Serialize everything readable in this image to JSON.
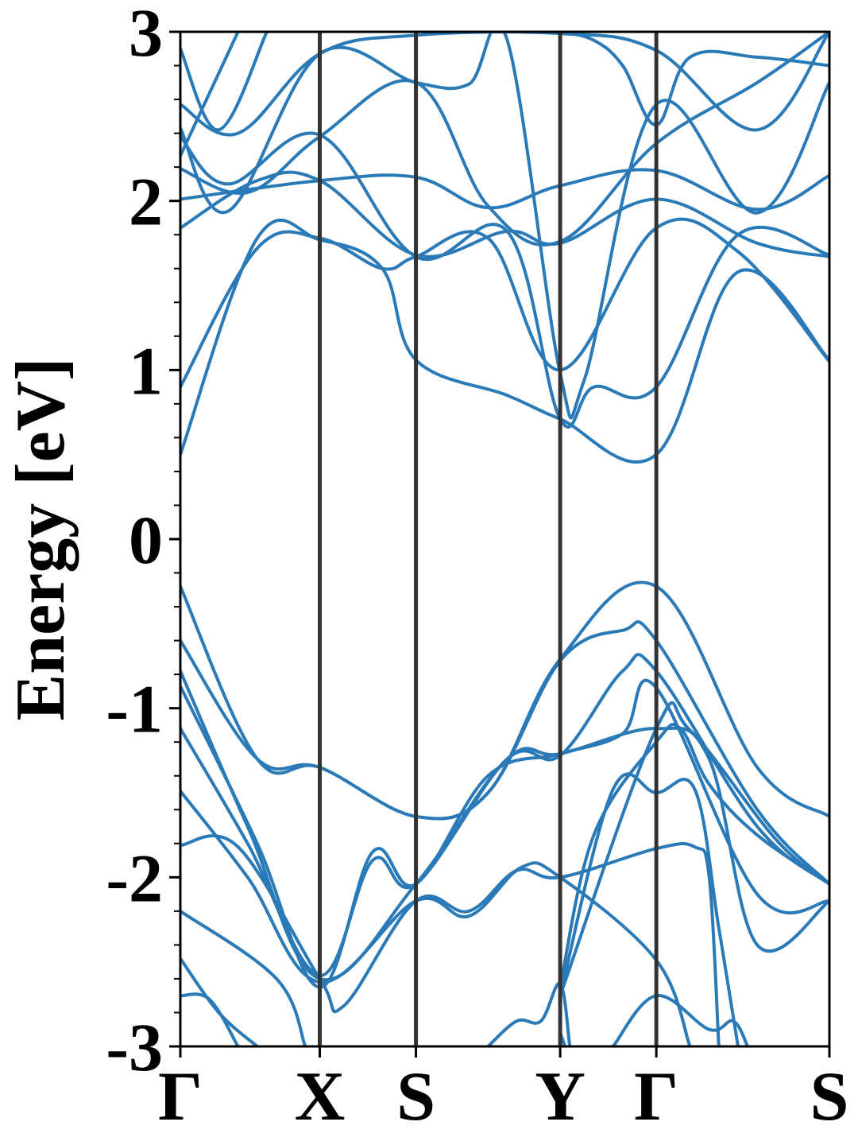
{
  "chart_data": {
    "type": "line",
    "title": "",
    "xlabel": "",
    "ylabel": "Energy [eV]",
    "ylim": [
      -3,
      3
    ],
    "xlim": [
      0,
      6.75
    ],
    "grid": false,
    "legend": "none",
    "series_color": "#2a7ab8",
    "kline_color": "#333333",
    "kpoints": [
      {
        "label": "Γ",
        "x": 0
      },
      {
        "label": "X",
        "x": 1.45
      },
      {
        "label": "S",
        "x": 2.45
      },
      {
        "label": "Y",
        "x": 3.95
      },
      {
        "label": "Γ",
        "x": 4.95
      },
      {
        "label": "S",
        "x": 6.75
      }
    ],
    "yticks": [
      {
        "value": 3,
        "label": "3"
      },
      {
        "value": 2,
        "label": "2"
      },
      {
        "value": 1,
        "label": "1"
      },
      {
        "value": 0,
        "label": "0"
      },
      {
        "value": -1,
        "label": "-1"
      },
      {
        "value": -2,
        "label": "-2"
      },
      {
        "value": -3,
        "label": "-3"
      }
    ],
    "yminor_step": 0.2,
    "series": [
      {
        "values": [
          [
            0,
            2.01
          ],
          [
            1.45,
            2.12
          ],
          [
            2.45,
            2.14
          ],
          [
            3.2,
            1.96
          ],
          [
            3.95,
            2.09
          ],
          [
            4.95,
            2.18
          ],
          [
            6.0,
            1.95
          ],
          [
            6.75,
            2.15
          ]
        ]
      },
      {
        "values": [
          [
            0,
            2.19
          ],
          [
            0.7,
            2.05
          ],
          [
            1.45,
            2.38
          ],
          [
            2.45,
            2.7
          ],
          [
            3.2,
            1.97
          ],
          [
            3.95,
            1.76
          ],
          [
            4.95,
            2.34
          ],
          [
            6.0,
            2.7
          ],
          [
            6.75,
            3.0
          ]
        ]
      },
      {
        "values": [
          [
            0,
            1.84
          ],
          [
            0.8,
            2.12
          ],
          [
            1.45,
            2.12
          ],
          [
            2.45,
            1.68
          ],
          [
            3.4,
            1.82
          ],
          [
            3.95,
            1.75
          ],
          [
            4.95,
            2.01
          ],
          [
            6.0,
            1.75
          ],
          [
            6.75,
            1.67
          ]
        ]
      },
      {
        "values": [
          [
            0,
            0.9
          ],
          [
            0.8,
            1.72
          ],
          [
            1.45,
            1.78
          ],
          [
            2.1,
            1.6
          ],
          [
            2.45,
            1.67
          ],
          [
            3.2,
            1.78
          ],
          [
            3.95,
            1.0
          ],
          [
            4.95,
            1.84
          ],
          [
            5.8,
            1.7
          ],
          [
            6.75,
            1.05
          ]
        ]
      },
      {
        "values": [
          [
            0,
            0.5
          ],
          [
            0.8,
            1.78
          ],
          [
            1.45,
            1.77
          ],
          [
            2.1,
            1.6
          ],
          [
            2.45,
            1.06
          ],
          [
            3.4,
            0.85
          ],
          [
            3.95,
            0.71
          ],
          [
            4.95,
            0.5
          ],
          [
            5.8,
            1.58
          ],
          [
            6.75,
            1.06
          ]
        ]
      },
      {
        "values": [
          [
            0,
            2.38
          ],
          [
            0.5,
            2.1
          ],
          [
            1.45,
            2.39
          ],
          [
            2.45,
            1.67
          ],
          [
            3.4,
            1.82
          ],
          [
            3.95,
            0.71
          ],
          [
            4.3,
            0.9
          ],
          [
            4.95,
            0.9
          ],
          [
            5.8,
            1.8
          ],
          [
            6.75,
            1.68
          ]
        ]
      },
      {
        "values": [
          [
            0,
            2.43
          ],
          [
            0.5,
            1.94
          ],
          [
            1.45,
            2.87
          ],
          [
            2.45,
            2.7
          ],
          [
            3.0,
            2.69
          ],
          [
            3.4,
            2.95
          ],
          [
            3.95,
            0.98
          ],
          [
            4.2,
            0.94
          ],
          [
            4.95,
            2.57
          ],
          [
            6.0,
            1.93
          ],
          [
            6.75,
            2.7
          ]
        ]
      },
      {
        "values": [
          [
            0,
            2.57
          ],
          [
            0.6,
            2.4
          ],
          [
            1.45,
            2.87
          ],
          [
            2.45,
            2.98
          ],
          [
            3.95,
            2.99
          ],
          [
            4.95,
            2.89
          ],
          [
            6.0,
            2.42
          ],
          [
            6.75,
            3.0
          ]
        ]
      },
      {
        "values": [
          [
            0,
            2.9
          ],
          [
            0.4,
            2.42
          ],
          [
            0.9,
            3.0
          ]
        ]
      },
      {
        "values": [
          [
            -0.3,
            1.9
          ],
          [
            0.6,
            3.0
          ]
        ]
      },
      {
        "values": [
          [
            3.95,
            3.0
          ],
          [
            4.3,
            2.95
          ],
          [
            4.6,
            2.8
          ],
          [
            4.95,
            2.45
          ],
          [
            5.3,
            2.85
          ],
          [
            6.0,
            2.85
          ],
          [
            6.75,
            2.8
          ]
        ]
      },
      {
        "values": [
          [
            0,
            -0.28
          ],
          [
            0.8,
            -1.3
          ],
          [
            1.45,
            -1.35
          ],
          [
            2.45,
            -1.64
          ],
          [
            3.2,
            -1.5
          ],
          [
            3.95,
            -0.71
          ],
          [
            4.95,
            -0.28
          ],
          [
            6.0,
            -1.35
          ],
          [
            6.75,
            -1.64
          ]
        ]
      },
      {
        "values": [
          [
            0,
            -0.6
          ],
          [
            0.8,
            -1.3
          ],
          [
            1.45,
            -1.35
          ],
          [
            2.45,
            -1.64
          ],
          [
            3.2,
            -1.5
          ],
          [
            3.95,
            -0.72
          ],
          [
            4.6,
            -0.54
          ],
          [
            4.95,
            -0.6
          ],
          [
            6.0,
            -1.6
          ],
          [
            6.75,
            -2.04
          ]
        ]
      },
      {
        "values": [
          [
            0,
            -0.78
          ],
          [
            0.7,
            -1.7
          ],
          [
            1.45,
            -2.6
          ],
          [
            2.45,
            -2.04
          ],
          [
            3.4,
            -1.3
          ],
          [
            3.95,
            -1.28
          ],
          [
            4.6,
            -0.78
          ],
          [
            4.95,
            -0.78
          ],
          [
            6.0,
            -1.7
          ],
          [
            6.75,
            -2.04
          ]
        ]
      },
      {
        "values": [
          [
            0,
            -0.87
          ],
          [
            0.8,
            -1.8
          ],
          [
            1.45,
            -2.65
          ],
          [
            2.0,
            -1.85
          ],
          [
            2.45,
            -2.04
          ],
          [
            3.2,
            -1.4
          ],
          [
            3.95,
            -1.27
          ],
          [
            4.6,
            -1.15
          ],
          [
            4.95,
            -0.88
          ],
          [
            6.0,
            -2.1
          ],
          [
            6.75,
            -2.14
          ]
        ]
      },
      {
        "values": [
          [
            0,
            -1.12
          ],
          [
            0.7,
            -1.8
          ],
          [
            1.45,
            -2.58
          ],
          [
            2.0,
            -1.9
          ],
          [
            2.45,
            -2.04
          ],
          [
            3.4,
            -1.3
          ],
          [
            3.95,
            -1.27
          ],
          [
            4.95,
            -1.12
          ],
          [
            5.5,
            -1.3
          ],
          [
            6.0,
            -2.4
          ],
          [
            6.75,
            -2.14
          ]
        ]
      },
      {
        "values": [
          [
            0,
            -1.49
          ],
          [
            0.7,
            -2.0
          ],
          [
            1.45,
            -2.62
          ],
          [
            2.45,
            -2.14
          ],
          [
            3.0,
            -2.23
          ],
          [
            3.55,
            -1.94
          ],
          [
            3.95,
            -2.0
          ],
          [
            4.95,
            -2.49
          ],
          [
            5.3,
            -3.0
          ]
        ]
      },
      {
        "values": [
          [
            0,
            -1.81
          ],
          [
            0.6,
            -1.82
          ],
          [
            1.45,
            -2.6
          ],
          [
            1.7,
            -2.76
          ],
          [
            2.45,
            -2.14
          ],
          [
            3.0,
            -2.2
          ],
          [
            3.5,
            -1.96
          ],
          [
            3.95,
            -2.0
          ],
          [
            4.95,
            -1.83
          ],
          [
            5.35,
            -1.82
          ],
          [
            5.5,
            -2.0
          ],
          [
            5.6,
            -3.0
          ]
        ]
      },
      {
        "values": [
          [
            3.95,
            -2.7
          ],
          [
            4.5,
            -1.48
          ],
          [
            4.95,
            -1.5
          ],
          [
            5.35,
            -1.48
          ],
          [
            5.6,
            -2.3
          ],
          [
            5.8,
            -3.0
          ]
        ]
      },
      {
        "values": [
          [
            3.95,
            -2.65
          ],
          [
            4.3,
            -1.75
          ],
          [
            4.95,
            -1.2
          ],
          [
            5.2,
            -1.12
          ],
          [
            5.5,
            -1.45
          ],
          [
            6.0,
            -1.75
          ],
          [
            6.75,
            -2.04
          ]
        ]
      },
      {
        "values": [
          [
            3.95,
            -2.7
          ],
          [
            4.95,
            -1.12
          ],
          [
            5.3,
            -1.13
          ],
          [
            6.2,
            -1.78
          ],
          [
            6.75,
            -2.04
          ]
        ]
      },
      {
        "values": [
          [
            0,
            -2.48
          ],
          [
            0.4,
            -2.8
          ],
          [
            0.8,
            -3.0
          ]
        ]
      },
      {
        "values": [
          [
            0,
            -2.7
          ],
          [
            0.3,
            -2.72
          ],
          [
            0.6,
            -3.0
          ]
        ]
      },
      {
        "values": [
          [
            0,
            -2.2
          ],
          [
            1.0,
            -2.6
          ],
          [
            1.3,
            -3.0
          ]
        ]
      },
      {
        "values": [
          [
            3.2,
            -3.0
          ],
          [
            3.5,
            -2.85
          ],
          [
            3.75,
            -2.85
          ],
          [
            3.95,
            -2.63
          ],
          [
            4.05,
            -3.0
          ]
        ]
      },
      {
        "values": [
          [
            3.95,
            -2.92
          ],
          [
            4.0,
            -3.0
          ]
        ]
      },
      {
        "values": [
          [
            4.5,
            -3.0
          ],
          [
            4.95,
            -2.7
          ],
          [
            5.5,
            -2.9
          ],
          [
            5.75,
            -2.85
          ],
          [
            5.9,
            -3.0
          ]
        ]
      }
    ]
  }
}
